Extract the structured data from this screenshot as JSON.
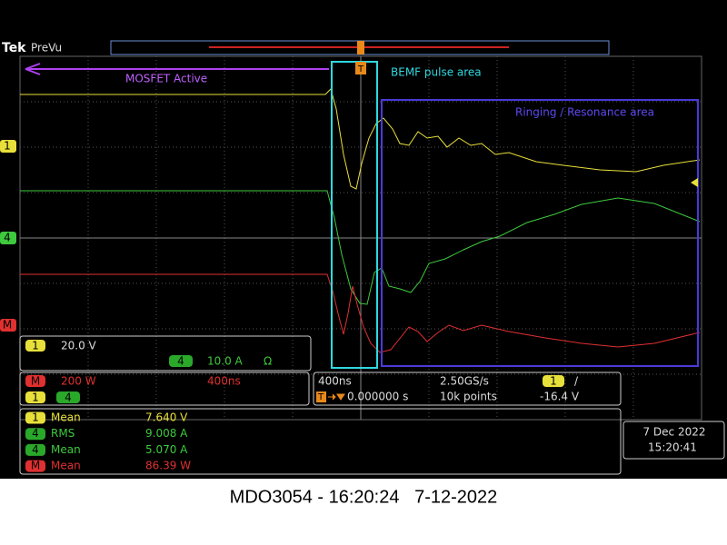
{
  "header": {
    "brand": "Tek",
    "mode": "PreVu"
  },
  "annotations": {
    "mosfet": "MOSFET Active",
    "bemf": "BEMF pulse area",
    "ringing": "Ringing / Resonance area"
  },
  "markers": {
    "ch1": "1",
    "ch4": "4",
    "math": "M",
    "trigger": "T"
  },
  "vertical": {
    "ch1_label": "1",
    "ch1_scale": "20.0 V",
    "ch4_label": "4",
    "ch4_scale": "10.0 A",
    "ch4_impedance": "Ω"
  },
  "math": {
    "label": "M",
    "scale": "200 W",
    "time": "400ns",
    "source1": "1",
    "source2": "4"
  },
  "horizontal": {
    "timebase": "400ns",
    "sample_rate": "2.50GS/s",
    "trigger_source": "1",
    "trigger_slope": "/",
    "trigger_icon": "T",
    "position": "0.000000 s",
    "record_length": "10k points",
    "trigger_level": "-16.4 V"
  },
  "measurements": [
    {
      "source": "1",
      "type": "Mean",
      "value": "7.640 V"
    },
    {
      "source": "4",
      "type": "RMS",
      "value": "9.008 A"
    },
    {
      "source": "4",
      "type": "Mean",
      "value": "5.070 A"
    },
    {
      "source": "M",
      "type": "Mean",
      "value": "86.39 W"
    }
  ],
  "datetime": {
    "date": "7 Dec 2022",
    "time": "15:20:41"
  },
  "caption": "MDO3054 - 16:20:24   7-12-2022"
}
